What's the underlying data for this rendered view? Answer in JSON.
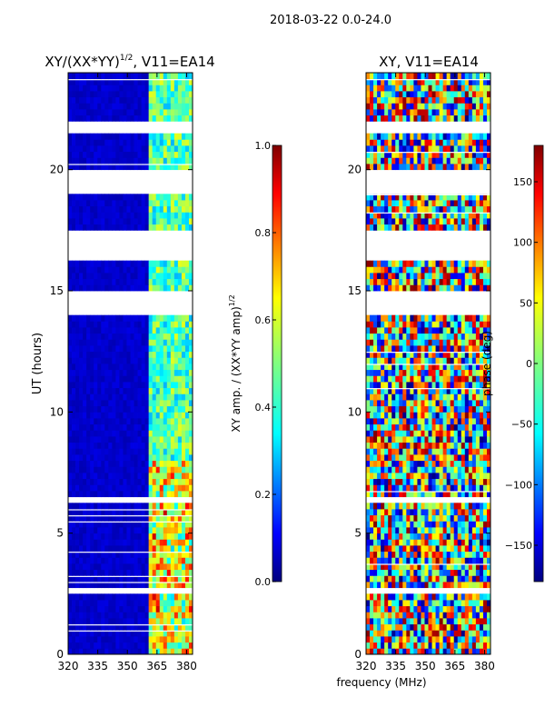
{
  "figure": {
    "suptitle": "2018-03-22 0.0-24.0",
    "shared_xlabel": "frequency (MHz)"
  },
  "colors": {
    "jet": [
      "#00007f",
      "#0000ff",
      "#0080ff",
      "#00ffff",
      "#80ff80",
      "#ffff00",
      "#ff8000",
      "#ff0000",
      "#7f0000"
    ],
    "axes": "#000000",
    "background": "#ffffff"
  },
  "chart_data": [
    {
      "type": "heatmap",
      "title": "XY/(XX*YY)^{1/2}, V11=EA14",
      "title_main": "XY/(XX*YY)",
      "title_sup": "1/2",
      "title_tail": ", V11=EA14",
      "xlabel": "",
      "ylabel": "UT (hours)",
      "xlim": [
        320,
        383
      ],
      "ylim": [
        0,
        24
      ],
      "xticks": [
        320,
        335,
        350,
        365,
        380
      ],
      "yticks": [
        0,
        5,
        10,
        15,
        20
      ],
      "gaps_hours": [
        [
          16.2,
          17.5
        ],
        [
          19.1,
          19.9
        ],
        [
          21.5,
          21.9
        ],
        [
          14.1,
          14.9
        ],
        [
          6.3,
          6.6
        ],
        [
          2.5,
          2.7
        ]
      ],
      "colorbar": {
        "label": "XY amp. / (XX*YY amp)^{1/2}",
        "label_main": "XY amp. / (XX*YY amp)",
        "label_sup": "1/2",
        "range": [
          0.0,
          1.0
        ],
        "ticks": [
          "0.0",
          "0.2",
          "0.4",
          "0.6",
          "0.8",
          "1.0"
        ]
      }
    },
    {
      "type": "heatmap",
      "title": "XY, V11=EA14",
      "xlabel": "",
      "ylabel": "",
      "xlim": [
        320,
        383
      ],
      "ylim": [
        0,
        24
      ],
      "xticks": [
        320,
        335,
        350,
        365,
        380
      ],
      "yticks": [
        0,
        5,
        10,
        15,
        20
      ],
      "gaps_hours": [
        [
          16.2,
          17.5
        ],
        [
          19.1,
          19.9
        ],
        [
          21.5,
          21.9
        ],
        [
          14.1,
          14.9
        ],
        [
          6.3,
          6.6
        ],
        [
          2.5,
          2.7
        ]
      ],
      "colorbar": {
        "label": "phase (deg)",
        "range": [
          -180,
          180
        ],
        "ticks": [
          "−150",
          "−100",
          "−50",
          "0",
          "50",
          "100",
          "150"
        ]
      }
    }
  ]
}
